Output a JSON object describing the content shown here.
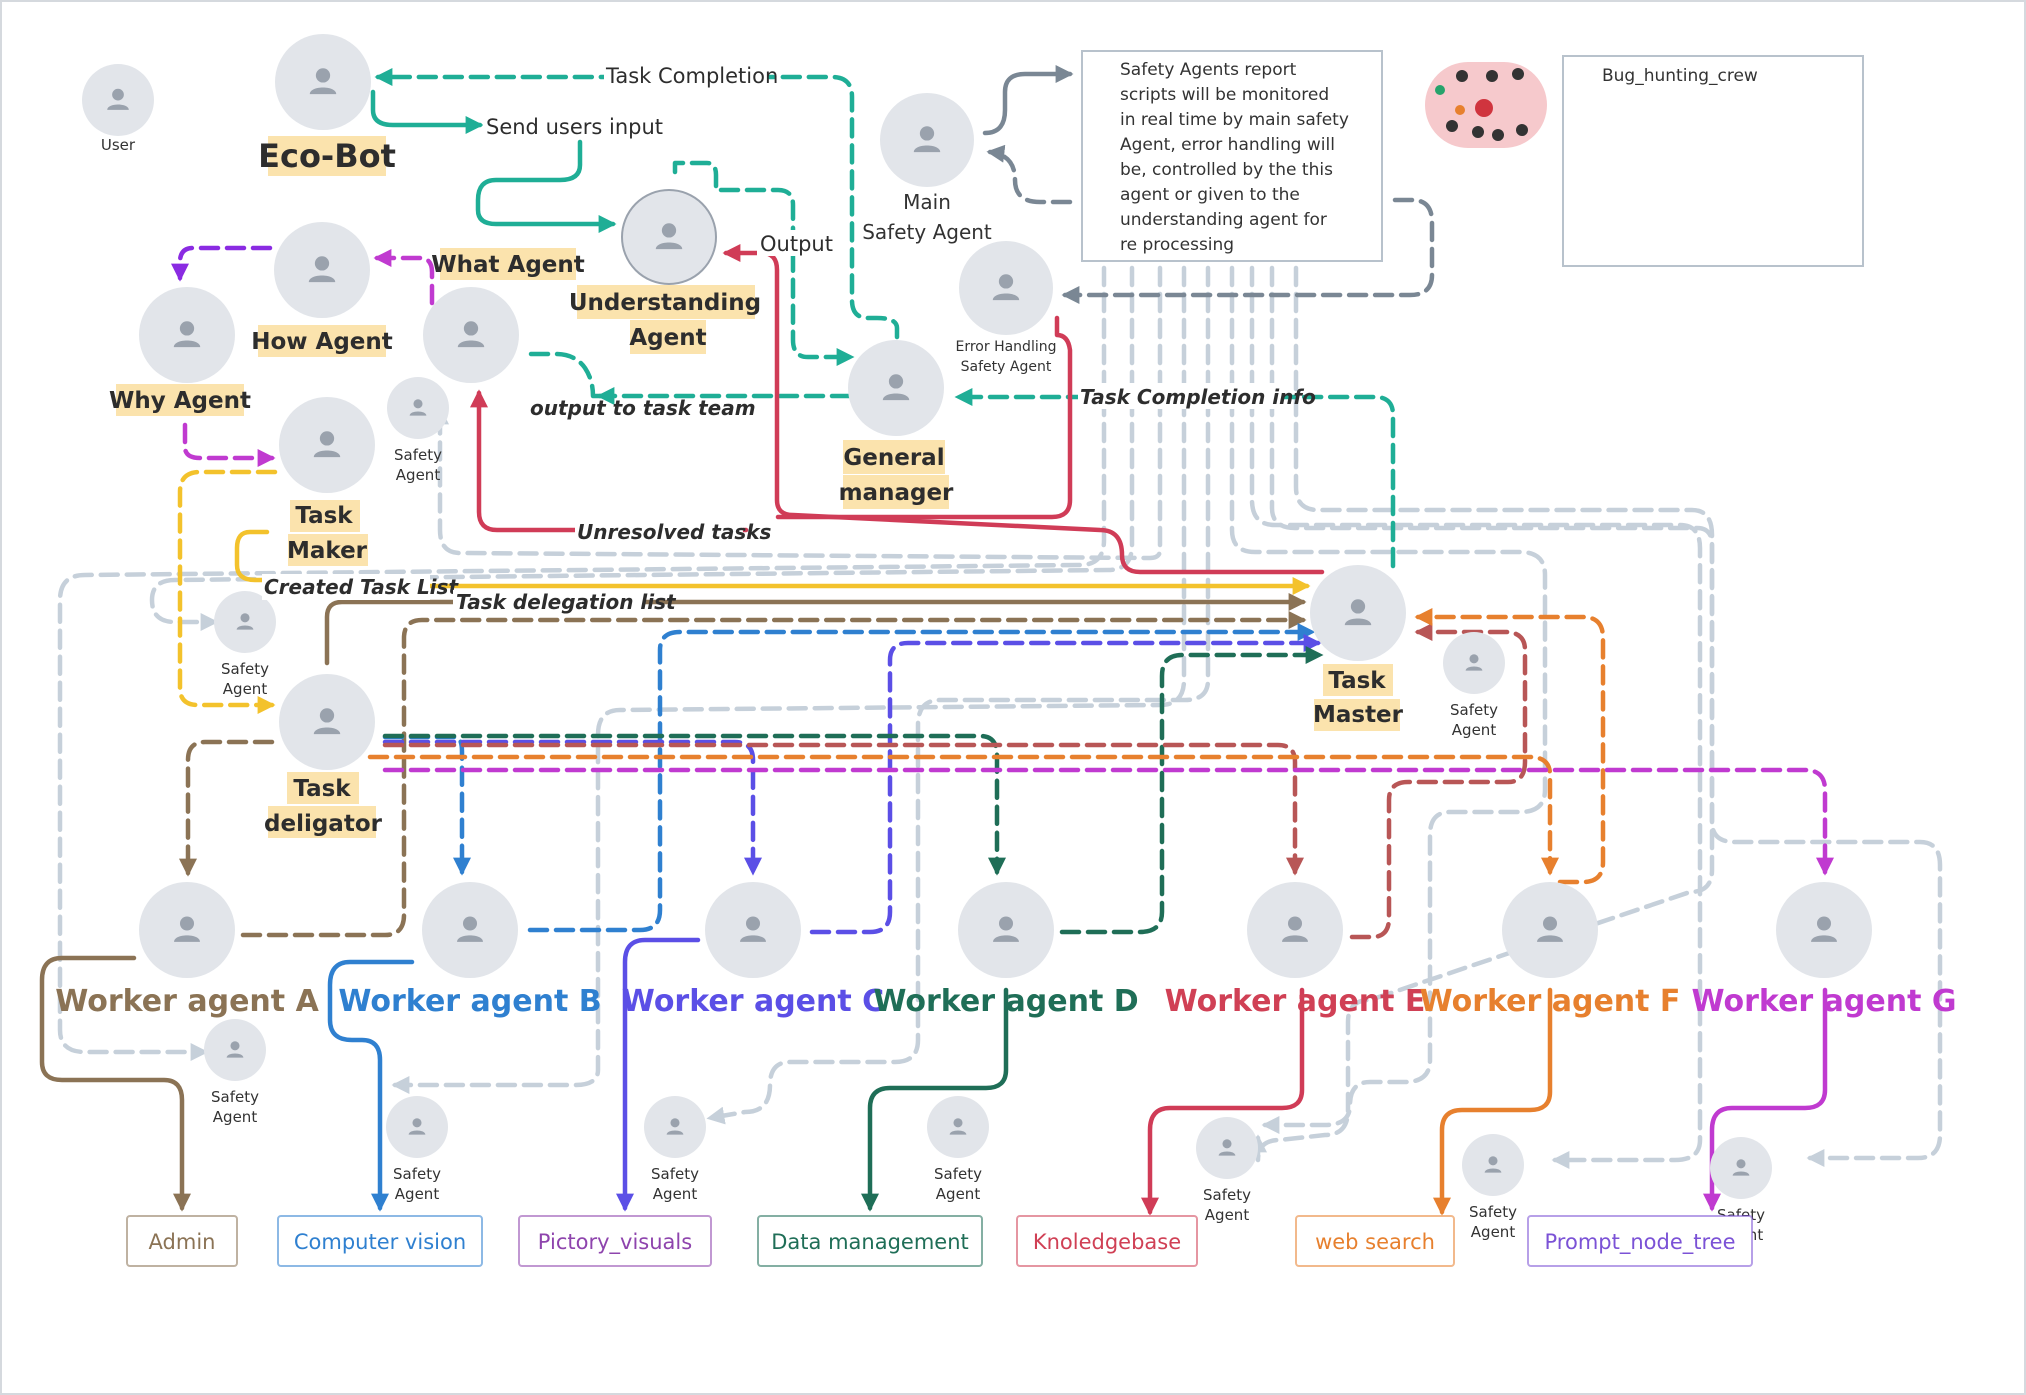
{
  "diagram": {
    "note_text": [
      "Safety Agents report",
      "scripts will be monitored",
      " in real time by main safety",
      "Agent, error handling will",
      "be, controlled by the this",
      "agent or given to the",
      " understanding agent for",
      "re processing"
    ],
    "crew_box_label": "Bug_hunting_crew",
    "nodes": {
      "user": "User",
      "eco_bot": "Eco-Bot",
      "understanding_1": "Understanding",
      "understanding_2": "Agent",
      "what": "What Agent",
      "how": "How Agent",
      "why": "Why Agent",
      "main_safety_1": "Main",
      "main_safety_2": "Safety Agent",
      "error_handling_1": "Error Handling",
      "error_handling_2": "Safety Agent",
      "general_1": "General",
      "general_2": "manager",
      "task_maker_1": "Task",
      "task_maker_2": "Maker",
      "task_master_1": "Task",
      "task_master_2": "Master",
      "task_deligator_1": "Task",
      "task_deligator_2": "deligator",
      "safety_1": "Safety",
      "safety_2": "Agent"
    },
    "edge_labels": {
      "task_completion": "Task Completion",
      "send_users_input": "Send users input",
      "output": "Output",
      "output_to_task_team": "output to task team",
      "task_completion_info": "Task Completion info",
      "unresolved_tasks": "Unresolved tasks",
      "created_task_list": "Created Task List",
      "task_delegation_list": "Task delegation list"
    },
    "workers": [
      {
        "label": "Worker agent A",
        "color": "#8b7355"
      },
      {
        "label": "Worker agent B",
        "color": "#2f80d0"
      },
      {
        "label": "Worker agent C",
        "color": "#5b4fe6"
      },
      {
        "label": "Worker agent D",
        "color": "#1f6e57"
      },
      {
        "label": "Worker agent E",
        "color": "#d04055"
      },
      {
        "label": "Worker agent F",
        "color": "#e7802e"
      },
      {
        "label": "Worker agent G",
        "color": "#c03ad0"
      }
    ],
    "tools": [
      {
        "label": "Admin",
        "color": "#8b7355"
      },
      {
        "label": "Computer vision",
        "color": "#2f80d0"
      },
      {
        "label": "Pictory_visuals",
        "color": "#8e44ad"
      },
      {
        "label": "Data management",
        "color": "#1f6e57"
      },
      {
        "label": "Knoledgebase",
        "color": "#d04055"
      },
      {
        "label": "web search",
        "color": "#e7802e"
      },
      {
        "label": "Prompt_node_tree",
        "color": "#7b52d6"
      }
    ],
    "colors": {
      "teal": "#1fae96",
      "red": "#d03c57",
      "yellow": "#f3c22c",
      "brown": "#8b7355",
      "gray_edge": "#c6d0da",
      "slate": "#7a8794",
      "purple": "#8a2be2",
      "magenta": "#c03ad0",
      "highlight": "#fbe3ad"
    }
  }
}
